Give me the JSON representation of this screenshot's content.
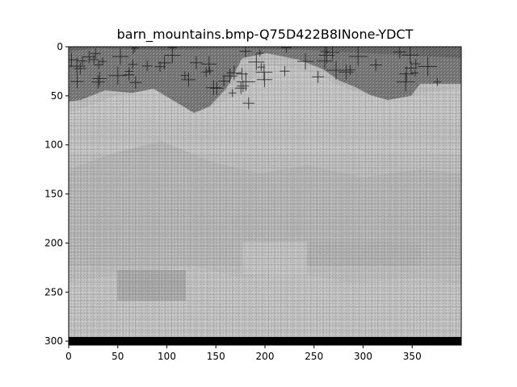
{
  "title": "barn_mountains.bmp-Q75D422B8INone-YDCT",
  "image": {
    "description_colors": {
      "black_band": "#000000",
      "sky_dark": "#6a6a6a",
      "sky_mid": "#8c8c8c",
      "mountain_light": "#bdbdbd",
      "ground_light": "#c6c6c6",
      "ground_mid": "#a8a8a8"
    },
    "width": 400,
    "height": 304
  },
  "axes": {
    "x_ticks": [
      "0",
      "50",
      "100",
      "150",
      "200",
      "250",
      "300",
      "350"
    ],
    "y_ticks": [
      "0",
      "50",
      "100",
      "150",
      "200",
      "250",
      "300"
    ]
  }
}
